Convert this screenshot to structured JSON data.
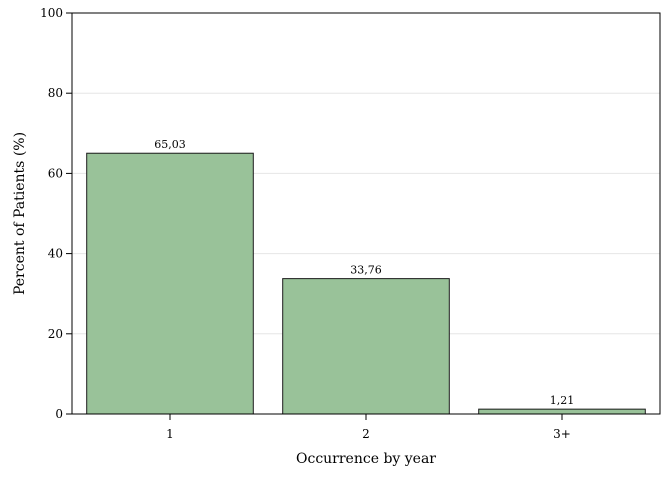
{
  "chart_data": {
    "type": "bar",
    "categories": [
      "1",
      "2",
      "3+"
    ],
    "values": [
      65.03,
      33.76,
      1.21
    ],
    "data_labels": [
      "65,03",
      "33,76",
      "1,21"
    ],
    "xlabel": "Occurrence by year",
    "ylabel": "Percent of Patients (%)",
    "ylim": [
      0,
      100
    ],
    "yticks": [
      0,
      20,
      40,
      60,
      80,
      100
    ],
    "grid": true,
    "legend": "none",
    "colors": {
      "bar_fill": "#99c299",
      "bar_stroke": "#1a1a1a",
      "grid": "#e6e6e6",
      "frame": "#000000"
    }
  }
}
